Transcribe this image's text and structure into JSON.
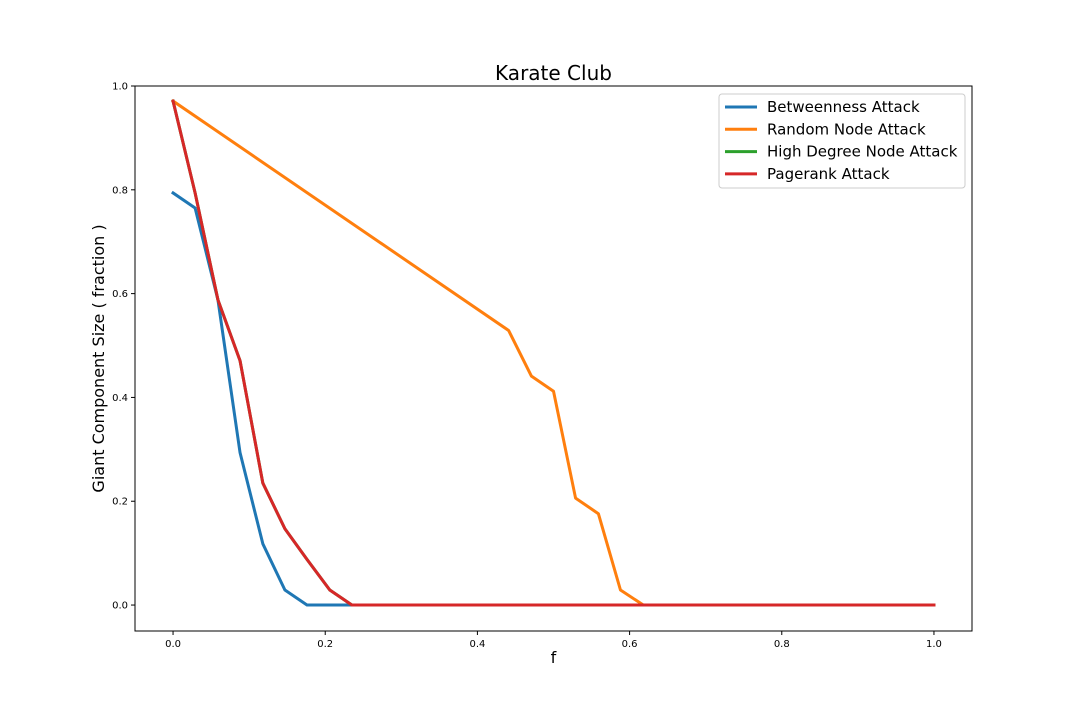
{
  "chart_data": {
    "type": "line",
    "title": "Karate Club",
    "xlabel": "f",
    "ylabel": "Giant Component Size ( fraction )",
    "xlim": [
      -0.05,
      1.05
    ],
    "ylim": [
      -0.05,
      1.0
    ],
    "xticks": [
      0.0,
      0.2,
      0.4,
      0.6,
      0.8,
      1.0
    ],
    "xtick_labels": [
      "0.0",
      "0.2",
      "0.4",
      "0.6",
      "0.8",
      "1.0"
    ],
    "yticks": [
      0.0,
      0.2,
      0.4,
      0.6,
      0.8,
      1.0
    ],
    "ytick_labels": [
      "0.0",
      "0.2",
      "0.4",
      "0.6",
      "0.8",
      "1.0"
    ],
    "grid": false,
    "legend_position": "top-right",
    "series": [
      {
        "name": "Betweenness Attack",
        "color": "#1f77b4",
        "x": [
          0.0,
          0.029,
          0.059,
          0.088,
          0.118,
          0.147,
          0.176,
          0.206,
          0.235,
          1.0
        ],
        "y": [
          0.794,
          0.765,
          0.588,
          0.294,
          0.118,
          0.029,
          0.0,
          0.0,
          0.0,
          0.0
        ]
      },
      {
        "name": "Random Node Attack",
        "color": "#ff7f0e",
        "x": [
          0.0,
          0.441,
          0.471,
          0.5,
          0.529,
          0.559,
          0.588,
          0.618,
          1.0
        ],
        "y": [
          0.971,
          0.529,
          0.441,
          0.412,
          0.206,
          0.176,
          0.029,
          0.0,
          0.0
        ]
      },
      {
        "name": "High Degree Node Attack",
        "color": "#2ca02c",
        "x": [
          0.0,
          0.029,
          0.059,
          0.088,
          0.118,
          0.147,
          0.176,
          0.206,
          0.235,
          1.0
        ],
        "y": [
          0.971,
          0.794,
          0.588,
          0.471,
          0.235,
          0.147,
          0.088,
          0.029,
          0.0,
          0.0
        ]
      },
      {
        "name": "Pagerank Attack",
        "color": "#d62728",
        "x": [
          0.0,
          0.029,
          0.059,
          0.088,
          0.118,
          0.147,
          0.176,
          0.206,
          0.235,
          1.0
        ],
        "y": [
          0.971,
          0.794,
          0.588,
          0.471,
          0.235,
          0.147,
          0.088,
          0.029,
          0.0,
          0.0
        ]
      }
    ]
  }
}
